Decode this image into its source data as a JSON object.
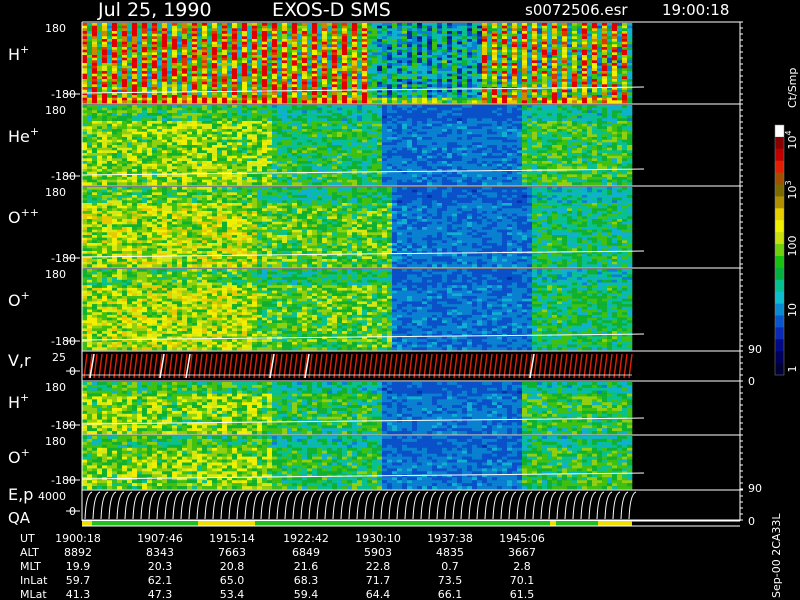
{
  "header": {
    "date": "Jul 25, 1990",
    "instrument": "EXOS-D SMS",
    "file": "s0072506.esr",
    "time": "19:00:18"
  },
  "side_label": "Sep-00 2CA33L",
  "chart_data": {
    "type": "heatmap",
    "panels": [
      {
        "label": "H",
        "sup": "+",
        "ymax": "180",
        "ymin": "-180"
      },
      {
        "label": "He",
        "sup": "+",
        "ymax": "180",
        "ymin": "-180"
      },
      {
        "label": "O",
        "sup": "++",
        "ymax": "180",
        "ymin": "-180"
      },
      {
        "label": "O",
        "sup": "+",
        "ymax": "180",
        "ymin": "-180"
      },
      {
        "label": "V,r",
        "sup": "",
        "ymax": "25",
        "ymin": "0",
        "right_max": "90",
        "right_min": "0"
      },
      {
        "label": "H",
        "sup": "+",
        "ymax": "180",
        "ymin": "-180"
      },
      {
        "label": "O",
        "sup": "+",
        "ymax": "180",
        "ymin": "-180"
      },
      {
        "label": "E,p",
        "sup": "",
        "ymax": "4000",
        "ymin": "0",
        "right_max": "90",
        "right_min": "0"
      }
    ],
    "qa_label": "QA",
    "colorbar": {
      "unit": "Ct/Smp",
      "ticks": [
        {
          "base": "1",
          "exp": ""
        },
        {
          "base": "10",
          "exp": ""
        },
        {
          "base": "100",
          "exp": ""
        },
        {
          "base": "10",
          "exp": "3"
        },
        {
          "base": "10",
          "exp": "4"
        }
      ],
      "colors": [
        "#000033",
        "#00005a",
        "#000a85",
        "#0a2ab5",
        "#0a55cc",
        "#0a8ad0",
        "#10bcd0",
        "#06c090",
        "#06b040",
        "#18c010",
        "#70d010",
        "#c8e010",
        "#f0f000",
        "#e8d000",
        "#b09000",
        "#7a6c00",
        "#a05000",
        "#e02000",
        "#c00000",
        "#880000",
        "#ffffff"
      ]
    },
    "ephemeris": {
      "rows": [
        {
          "label": "UT",
          "values": [
            "1900:18",
            "1907:46",
            "1915:14",
            "1922:42",
            "1930:10",
            "1937:38",
            "1945:06"
          ]
        },
        {
          "label": "ALT",
          "values": [
            "8892",
            "8343",
            "7663",
            "6849",
            "5903",
            "4835",
            "3667"
          ]
        },
        {
          "label": "MLT",
          "values": [
            "19.9",
            "20.3",
            "20.8",
            "21.6",
            "22.8",
            "0.7",
            "2.8"
          ]
        },
        {
          "label": "InLat",
          "values": [
            "59.7",
            "62.1",
            "65.0",
            "68.3",
            "71.7",
            "73.5",
            "70.1"
          ]
        },
        {
          "label": "MLat",
          "values": [
            "41.3",
            "47.3",
            "53.4",
            "59.4",
            "64.4",
            "66.1",
            "61.5"
          ]
        }
      ]
    }
  }
}
